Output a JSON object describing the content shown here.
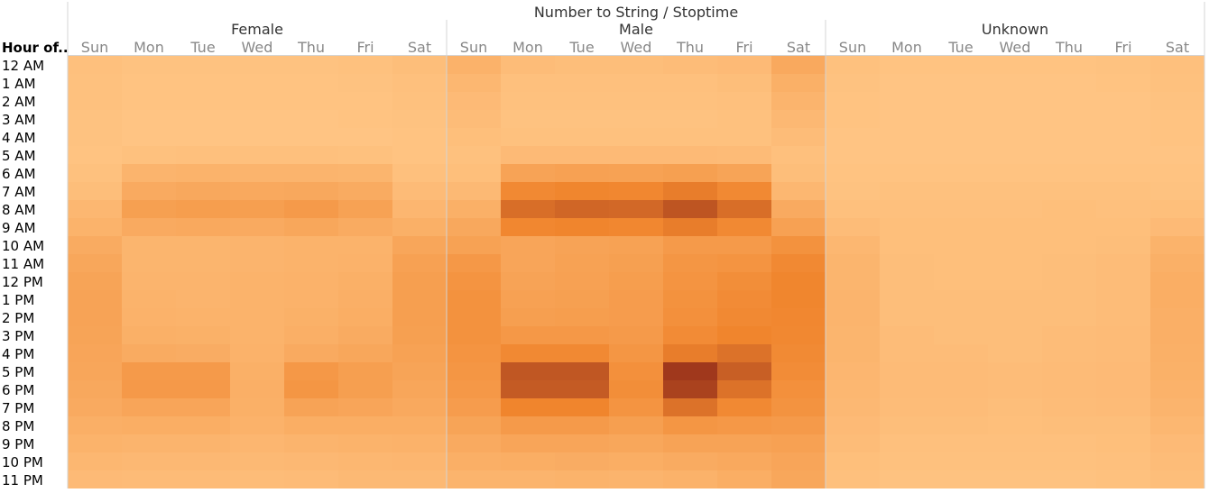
{
  "chart_data": {
    "type": "heatmap",
    "title": "Number to String / Stoptime",
    "row_header": "Hour of..",
    "groups": [
      "Female",
      "Male",
      "Unknown"
    ],
    "days": [
      "Sun",
      "Mon",
      "Tue",
      "Wed",
      "Thu",
      "Fri",
      "Sat"
    ],
    "hours": [
      "12 AM",
      "1 AM",
      "2 AM",
      "3 AM",
      "4 AM",
      "5 AM",
      "6 AM",
      "7 AM",
      "8 AM",
      "9 AM",
      "10 AM",
      "11 AM",
      "12 PM",
      "1 PM",
      "2 PM",
      "3 PM",
      "4 PM",
      "5 PM",
      "6 PM",
      "7 PM",
      "8 PM",
      "9 PM",
      "10 PM",
      "11 PM"
    ],
    "color_scale": {
      "low": "#ffc584",
      "mid": "#f0852d",
      "high": "#a0381c"
    },
    "grid": false,
    "values": {
      "Female": [
        [
          0.05,
          0.03,
          0.03,
          0.03,
          0.03,
          0.04,
          0.07
        ],
        [
          0.04,
          0.02,
          0.02,
          0.02,
          0.02,
          0.03,
          0.05
        ],
        [
          0.04,
          0.02,
          0.02,
          0.02,
          0.02,
          0.02,
          0.04
        ],
        [
          0.03,
          0.01,
          0.01,
          0.01,
          0.01,
          0.02,
          0.03
        ],
        [
          0.03,
          0.01,
          0.01,
          0.01,
          0.01,
          0.01,
          0.02
        ],
        [
          0.02,
          0.04,
          0.05,
          0.05,
          0.05,
          0.04,
          0.02
        ],
        [
          0.04,
          0.16,
          0.17,
          0.16,
          0.16,
          0.15,
          0.05
        ],
        [
          0.07,
          0.25,
          0.27,
          0.26,
          0.27,
          0.24,
          0.09
        ],
        [
          0.13,
          0.35,
          0.37,
          0.36,
          0.4,
          0.33,
          0.14
        ],
        [
          0.17,
          0.25,
          0.26,
          0.25,
          0.28,
          0.24,
          0.2
        ],
        [
          0.24,
          0.15,
          0.15,
          0.16,
          0.17,
          0.17,
          0.29
        ],
        [
          0.28,
          0.15,
          0.15,
          0.16,
          0.17,
          0.18,
          0.34
        ],
        [
          0.31,
          0.16,
          0.16,
          0.17,
          0.18,
          0.2,
          0.36
        ],
        [
          0.32,
          0.17,
          0.16,
          0.17,
          0.18,
          0.21,
          0.36
        ],
        [
          0.32,
          0.18,
          0.17,
          0.17,
          0.19,
          0.22,
          0.36
        ],
        [
          0.31,
          0.2,
          0.19,
          0.17,
          0.21,
          0.24,
          0.35
        ],
        [
          0.3,
          0.24,
          0.23,
          0.18,
          0.25,
          0.28,
          0.33
        ],
        [
          0.29,
          0.4,
          0.4,
          0.2,
          0.42,
          0.36,
          0.31
        ],
        [
          0.27,
          0.41,
          0.41,
          0.21,
          0.44,
          0.36,
          0.29
        ],
        [
          0.25,
          0.3,
          0.3,
          0.2,
          0.32,
          0.3,
          0.26
        ],
        [
          0.21,
          0.22,
          0.22,
          0.18,
          0.22,
          0.22,
          0.22
        ],
        [
          0.17,
          0.16,
          0.16,
          0.14,
          0.16,
          0.17,
          0.18
        ],
        [
          0.13,
          0.12,
          0.12,
          0.11,
          0.12,
          0.13,
          0.14
        ],
        [
          0.1,
          0.09,
          0.09,
          0.08,
          0.09,
          0.11,
          0.11
        ]
      ],
      "Male": [
        [
          0.18,
          0.08,
          0.07,
          0.07,
          0.08,
          0.1,
          0.26
        ],
        [
          0.13,
          0.05,
          0.05,
          0.05,
          0.05,
          0.07,
          0.2
        ],
        [
          0.1,
          0.04,
          0.04,
          0.04,
          0.04,
          0.05,
          0.16
        ],
        [
          0.08,
          0.03,
          0.03,
          0.03,
          0.03,
          0.04,
          0.12
        ],
        [
          0.06,
          0.04,
          0.04,
          0.04,
          0.04,
          0.04,
          0.08
        ],
        [
          0.04,
          0.1,
          0.1,
          0.1,
          0.1,
          0.09,
          0.05
        ],
        [
          0.06,
          0.32,
          0.34,
          0.33,
          0.35,
          0.31,
          0.07
        ],
        [
          0.11,
          0.56,
          0.59,
          0.58,
          0.64,
          0.56,
          0.13
        ],
        [
          0.2,
          0.72,
          0.76,
          0.75,
          0.85,
          0.72,
          0.25
        ],
        [
          0.27,
          0.58,
          0.6,
          0.58,
          0.64,
          0.56,
          0.34
        ],
        [
          0.33,
          0.3,
          0.32,
          0.33,
          0.4,
          0.4,
          0.48
        ],
        [
          0.42,
          0.3,
          0.33,
          0.35,
          0.44,
          0.46,
          0.56
        ],
        [
          0.46,
          0.32,
          0.34,
          0.37,
          0.46,
          0.52,
          0.59
        ],
        [
          0.48,
          0.34,
          0.35,
          0.38,
          0.48,
          0.54,
          0.59
        ],
        [
          0.48,
          0.36,
          0.37,
          0.38,
          0.5,
          0.56,
          0.58
        ],
        [
          0.48,
          0.42,
          0.42,
          0.4,
          0.54,
          0.6,
          0.57
        ],
        [
          0.46,
          0.56,
          0.56,
          0.44,
          0.64,
          0.7,
          0.55
        ],
        [
          0.44,
          0.84,
          0.84,
          0.5,
          1.0,
          0.8,
          0.53
        ],
        [
          0.42,
          0.82,
          0.82,
          0.52,
          0.95,
          0.7,
          0.5
        ],
        [
          0.38,
          0.6,
          0.6,
          0.46,
          0.7,
          0.56,
          0.47
        ],
        [
          0.31,
          0.4,
          0.4,
          0.36,
          0.44,
          0.42,
          0.4
        ],
        [
          0.25,
          0.3,
          0.3,
          0.28,
          0.32,
          0.32,
          0.34
        ],
        [
          0.21,
          0.22,
          0.23,
          0.22,
          0.24,
          0.26,
          0.3
        ],
        [
          0.16,
          0.16,
          0.17,
          0.16,
          0.18,
          0.22,
          0.28
        ]
      ],
      "Unknown": [
        [
          0.04,
          0.02,
          0.02,
          0.02,
          0.02,
          0.03,
          0.05
        ],
        [
          0.03,
          0.01,
          0.01,
          0.01,
          0.01,
          0.02,
          0.04
        ],
        [
          0.02,
          0.01,
          0.01,
          0.01,
          0.01,
          0.01,
          0.03
        ],
        [
          0.02,
          0.01,
          0.01,
          0.01,
          0.01,
          0.01,
          0.02
        ],
        [
          0.01,
          0.01,
          0.01,
          0.01,
          0.01,
          0.01,
          0.02
        ],
        [
          0.01,
          0.01,
          0.01,
          0.01,
          0.01,
          0.01,
          0.01
        ],
        [
          0.02,
          0.02,
          0.02,
          0.02,
          0.02,
          0.02,
          0.02
        ],
        [
          0.03,
          0.04,
          0.04,
          0.04,
          0.04,
          0.04,
          0.03
        ],
        [
          0.05,
          0.05,
          0.05,
          0.05,
          0.06,
          0.05,
          0.06
        ],
        [
          0.08,
          0.06,
          0.06,
          0.06,
          0.06,
          0.06,
          0.1
        ],
        [
          0.13,
          0.06,
          0.06,
          0.06,
          0.06,
          0.07,
          0.17
        ],
        [
          0.15,
          0.07,
          0.06,
          0.06,
          0.07,
          0.08,
          0.2
        ],
        [
          0.15,
          0.07,
          0.06,
          0.06,
          0.07,
          0.08,
          0.22
        ],
        [
          0.16,
          0.07,
          0.07,
          0.07,
          0.07,
          0.08,
          0.22
        ],
        [
          0.16,
          0.07,
          0.07,
          0.07,
          0.07,
          0.08,
          0.21
        ],
        [
          0.15,
          0.08,
          0.07,
          0.07,
          0.08,
          0.09,
          0.21
        ],
        [
          0.15,
          0.08,
          0.08,
          0.07,
          0.08,
          0.09,
          0.2
        ],
        [
          0.14,
          0.09,
          0.09,
          0.08,
          0.09,
          0.1,
          0.19
        ],
        [
          0.13,
          0.09,
          0.09,
          0.08,
          0.09,
          0.1,
          0.18
        ],
        [
          0.12,
          0.08,
          0.08,
          0.07,
          0.08,
          0.09,
          0.16
        ],
        [
          0.1,
          0.07,
          0.07,
          0.06,
          0.07,
          0.07,
          0.13
        ],
        [
          0.08,
          0.05,
          0.05,
          0.05,
          0.05,
          0.06,
          0.1
        ],
        [
          0.06,
          0.04,
          0.04,
          0.04,
          0.04,
          0.05,
          0.08
        ],
        [
          0.05,
          0.03,
          0.03,
          0.03,
          0.03,
          0.04,
          0.07
        ]
      ]
    }
  }
}
